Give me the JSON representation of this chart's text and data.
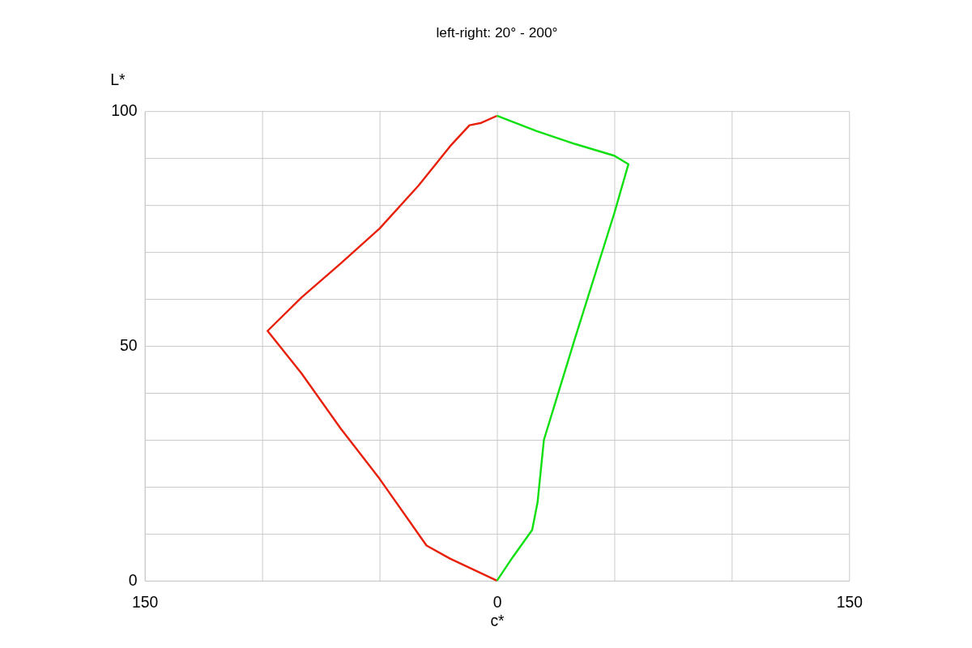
{
  "chart_data": {
    "type": "line",
    "title": "left-right: 20° - 200°",
    "xlabel": "c*",
    "ylabel": "L*",
    "xlim": [
      -150,
      150
    ],
    "xticks": [
      {
        "value": -150,
        "label": "150"
      },
      {
        "value": -100,
        "label": null
      },
      {
        "value": -50,
        "label": null
      },
      0,
      {
        "value": 50,
        "label": null
      },
      {
        "value": 100,
        "label": null
      },
      {
        "value": 150,
        "label": "150"
      }
    ],
    "ylim": [
      0,
      100
    ],
    "yticks": [
      0,
      {
        "value": 10,
        "label": null
      },
      {
        "value": 20,
        "label": null
      },
      {
        "value": 30,
        "label": null
      },
      {
        "value": 40,
        "label": null
      },
      50,
      {
        "value": 60,
        "label": null
      },
      {
        "value": 70,
        "label": null
      },
      {
        "value": 80,
        "label": null
      },
      {
        "value": 90,
        "label": null
      },
      100
    ],
    "grid": true,
    "line_style": "solid",
    "series": [
      {
        "color": "#e8200a",
        "x": [
          0,
          -20,
          -30,
          -50,
          -66.7,
          -83.3,
          -97.7,
          -83.3,
          -66.7,
          -50,
          -33.3,
          -20,
          -11.7,
          -6.7,
          0
        ],
        "values": [
          0,
          4.7,
          7.5,
          21.7,
          32.5,
          44.2,
          53.2,
          60.3,
          67.5,
          75,
          84.2,
          92.5,
          97,
          97.5,
          99
        ]
      },
      {
        "color": "#10e010",
        "x": [
          0,
          16.7,
          33.3,
          50,
          56,
          50,
          33.3,
          20,
          17.3,
          15,
          6.7,
          0
        ],
        "values": [
          99,
          95.8,
          93,
          90.5,
          88.7,
          78.3,
          51.7,
          30,
          16.7,
          10.8,
          5,
          0
        ]
      }
    ]
  }
}
